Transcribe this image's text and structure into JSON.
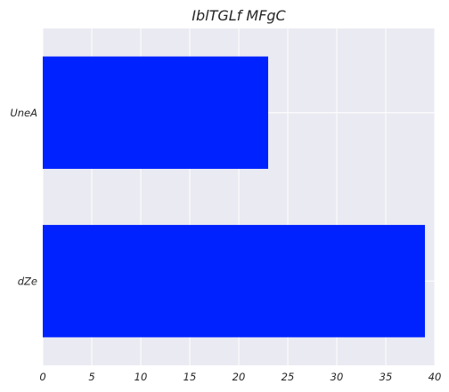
{
  "chart_data": {
    "type": "bar",
    "orientation": "horizontal",
    "title": "IblTGLf MFgC",
    "xlabel": "",
    "ylabel": "",
    "categories": [
      "UneA",
      "dZe"
    ],
    "values": [
      23,
      39
    ],
    "xlim": [
      0,
      40
    ],
    "xticks": [
      0,
      5,
      10,
      15,
      20,
      25,
      30,
      35,
      40
    ],
    "grid": true,
    "colors": {
      "bar": "#0022ff",
      "plot_background": "#eaeaf2",
      "grid": "#ffffff"
    }
  }
}
